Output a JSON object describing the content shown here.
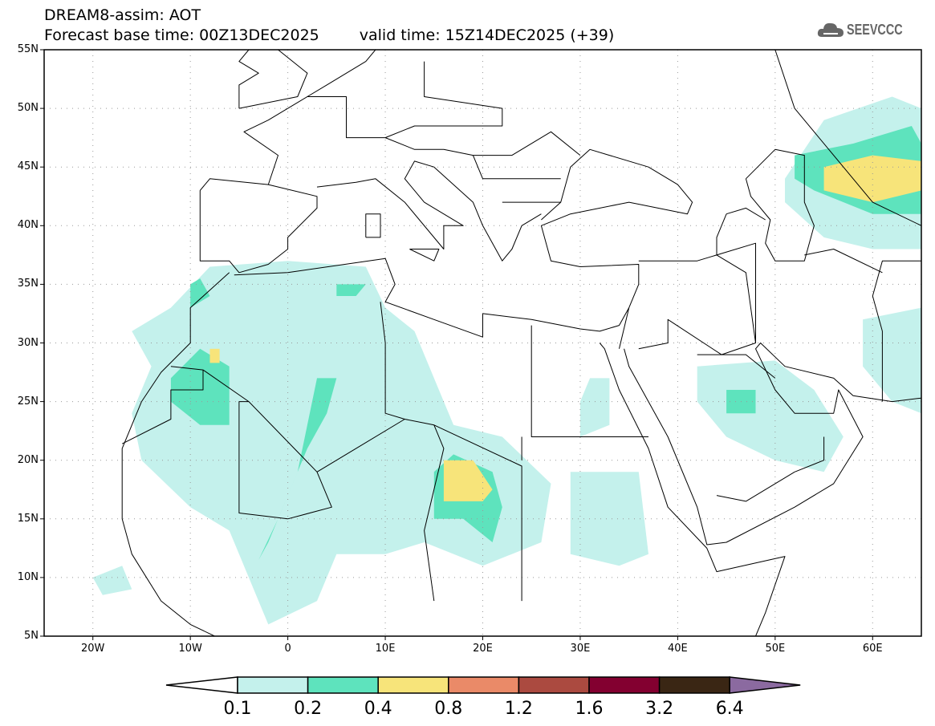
{
  "header": {
    "title": "DREAM8-assim: AOT",
    "base_time": "Forecast base time: 00Z13DEC2025",
    "valid_time": "valid time: 15Z14DEC2025 (+39)"
  },
  "logo": {
    "text": "SEEVCCC"
  },
  "axes": {
    "lat_labels": [
      {
        "v": 55,
        "t": "55N"
      },
      {
        "v": 50,
        "t": "50N"
      },
      {
        "v": 45,
        "t": "45N"
      },
      {
        "v": 40,
        "t": "40N"
      },
      {
        "v": 35,
        "t": "35N"
      },
      {
        "v": 30,
        "t": "30N"
      },
      {
        "v": 25,
        "t": "25N"
      },
      {
        "v": 20,
        "t": "20N"
      },
      {
        "v": 15,
        "t": "15N"
      },
      {
        "v": 10,
        "t": "10N"
      },
      {
        "v": 5,
        "t": "5N"
      }
    ],
    "lon_labels": [
      {
        "v": -20,
        "t": "20W"
      },
      {
        "v": -10,
        "t": "10W"
      },
      {
        "v": 0,
        "t": "0"
      },
      {
        "v": 10,
        "t": "10E"
      },
      {
        "v": 20,
        "t": "20E"
      },
      {
        "v": 30,
        "t": "30E"
      },
      {
        "v": 40,
        "t": "40E"
      },
      {
        "v": 50,
        "t": "50E"
      },
      {
        "v": 60,
        "t": "60E"
      }
    ],
    "lon_range": [
      -25,
      65
    ],
    "lat_range": [
      5,
      55
    ]
  },
  "colorbar": {
    "labels": [
      "0.1",
      "0.2",
      "0.4",
      "0.8",
      "1.2",
      "1.6",
      "3.2",
      "6.4"
    ],
    "colors": [
      "#ffffff",
      "#c4f1ec",
      "#5ee3bd",
      "#f7e47a",
      "#ea8a68",
      "#ab4a40",
      "#830030",
      "#3a2614",
      "#8b6aa0"
    ]
  },
  "chart_data": {
    "type": "map",
    "title": "DREAM8-assim: AOT",
    "regions": [
      {
        "level": 1,
        "pts": [
          [
            -12,
            33
          ],
          [
            -8,
            36.5
          ],
          [
            0,
            37
          ],
          [
            8,
            36.5
          ],
          [
            10,
            33
          ],
          [
            13,
            31
          ],
          [
            15,
            27
          ],
          [
            17,
            23
          ],
          [
            22,
            22
          ],
          [
            27,
            18
          ],
          [
            26,
            13
          ],
          [
            20,
            11
          ],
          [
            14,
            13
          ],
          [
            10,
            12
          ],
          [
            5,
            12
          ],
          [
            3,
            8
          ],
          [
            -2,
            6
          ],
          [
            -4,
            10
          ],
          [
            -6,
            14
          ],
          [
            -10,
            16
          ],
          [
            -15,
            20
          ],
          [
            -16,
            24
          ],
          [
            -14,
            28
          ],
          [
            -16,
            31
          ]
        ]
      },
      {
        "level": 1,
        "pts": [
          [
            -20,
            10
          ],
          [
            -17,
            11
          ],
          [
            -16,
            9
          ],
          [
            -19,
            8.5
          ]
        ]
      },
      {
        "level": 1,
        "pts": [
          [
            29,
            19
          ],
          [
            36,
            19
          ],
          [
            37,
            12
          ],
          [
            34,
            11
          ],
          [
            29,
            12
          ]
        ]
      },
      {
        "level": 1,
        "pts": [
          [
            31,
            27
          ],
          [
            33,
            27
          ],
          [
            33,
            23
          ],
          [
            30,
            22
          ],
          [
            30,
            25
          ]
        ]
      },
      {
        "level": 1,
        "pts": [
          [
            42,
            28
          ],
          [
            50,
            28.5
          ],
          [
            54,
            26
          ],
          [
            57,
            22
          ],
          [
            55,
            19
          ],
          [
            50,
            20
          ],
          [
            45,
            22
          ],
          [
            42,
            25
          ]
        ]
      },
      {
        "level": 1,
        "pts": [
          [
            51,
            44
          ],
          [
            55,
            49
          ],
          [
            62,
            51
          ],
          [
            65,
            50
          ],
          [
            65,
            38
          ],
          [
            60,
            38
          ],
          [
            55,
            39
          ],
          [
            51,
            42
          ]
        ]
      },
      {
        "level": 1,
        "pts": [
          [
            59,
            32
          ],
          [
            65,
            33
          ],
          [
            65,
            24
          ],
          [
            62,
            25
          ],
          [
            59,
            28
          ]
        ]
      },
      {
        "level": 2,
        "pts": [
          [
            -12,
            27
          ],
          [
            -9,
            29.5
          ],
          [
            -6,
            28
          ],
          [
            -6,
            23
          ],
          [
            -9,
            23
          ],
          [
            -12,
            25
          ]
        ]
      },
      {
        "level": 2,
        "pts": [
          [
            3,
            27
          ],
          [
            5,
            27
          ],
          [
            4,
            24
          ],
          [
            2,
            21
          ],
          [
            0,
            17
          ],
          [
            -2,
            13
          ],
          [
            -3,
            11.5
          ],
          [
            -1,
            15
          ],
          [
            1,
            19
          ],
          [
            2,
            23
          ]
        ]
      },
      {
        "level": 2,
        "pts": [
          [
            -10,
            35
          ],
          [
            -9,
            35.5
          ],
          [
            -8,
            34
          ],
          [
            -10,
            33
          ]
        ]
      },
      {
        "level": 2,
        "pts": [
          [
            5,
            35
          ],
          [
            8,
            35
          ],
          [
            7,
            34
          ],
          [
            5,
            34
          ]
        ]
      },
      {
        "level": 2,
        "pts": [
          [
            15,
            19
          ],
          [
            17,
            20.5
          ],
          [
            21,
            19
          ],
          [
            22,
            16
          ],
          [
            21,
            13
          ],
          [
            18,
            15
          ],
          [
            15,
            15
          ]
        ]
      },
      {
        "level": 2,
        "pts": [
          [
            45,
            26
          ],
          [
            48,
            26
          ],
          [
            48,
            24
          ],
          [
            45,
            24
          ]
        ]
      },
      {
        "level": 2,
        "pts": [
          [
            52,
            46
          ],
          [
            58,
            47
          ],
          [
            64,
            48.5
          ],
          [
            65,
            47
          ],
          [
            65,
            41
          ],
          [
            60,
            41
          ],
          [
            54,
            43
          ],
          [
            52,
            44
          ]
        ]
      },
      {
        "level": 3,
        "pts": [
          [
            -8,
            29.5
          ],
          [
            -7,
            29.5
          ],
          [
            -7,
            28.3
          ],
          [
            -8,
            28.3
          ]
        ]
      },
      {
        "level": 3,
        "pts": [
          [
            16,
            20
          ],
          [
            19,
            20
          ],
          [
            21,
            17.5
          ],
          [
            20,
            16.5
          ],
          [
            16,
            16.5
          ]
        ]
      },
      {
        "level": 3,
        "pts": [
          [
            55,
            45
          ],
          [
            60,
            46
          ],
          [
            65,
            45.5
          ],
          [
            65,
            43
          ],
          [
            60,
            42
          ],
          [
            55,
            43
          ]
        ]
      }
    ]
  }
}
